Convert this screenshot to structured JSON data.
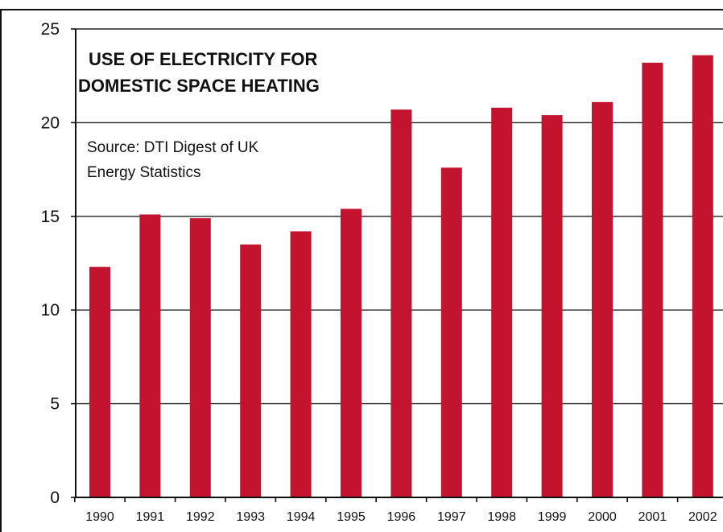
{
  "chart_data": {
    "type": "bar",
    "title_lines": [
      "USE OF ELECTRICITY FOR",
      "DOMESTIC SPACE HEATING"
    ],
    "source_lines": [
      "Source: DTI Digest of UK",
      "Energy Statistics"
    ],
    "categories": [
      "1990",
      "1991",
      "1992",
      "1993",
      "1994",
      "1995",
      "1996",
      "1997",
      "1998",
      "1999",
      "2000",
      "2001",
      "2002"
    ],
    "values": [
      12.3,
      15.1,
      14.9,
      13.5,
      14.2,
      15.4,
      20.7,
      17.6,
      20.8,
      20.4,
      21.1,
      23.2,
      23.6
    ],
    "ylim": [
      0,
      25
    ],
    "yticks": [
      0,
      5,
      10,
      15,
      20,
      25
    ],
    "xlabel": "",
    "ylabel": "",
    "grid": true,
    "bar_color": "#c2142f"
  }
}
